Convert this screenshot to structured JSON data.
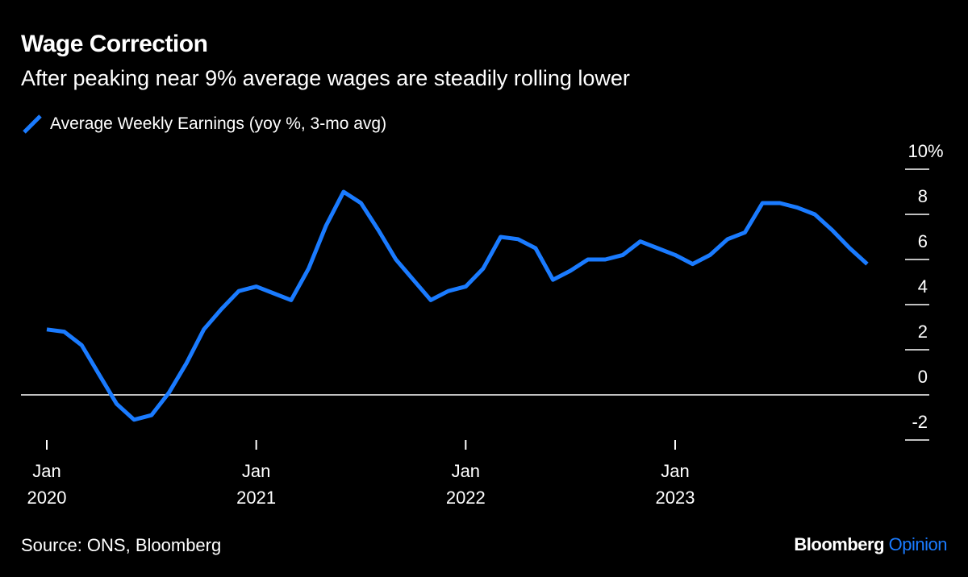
{
  "header": {
    "title": "Wage Correction",
    "subtitle": "After peaking near 9% average wages are steadily rolling lower"
  },
  "footer": {
    "source": "Source: ONS, Bloomberg",
    "logo_brand": "Bloomberg",
    "logo_product": "Opinion"
  },
  "colors": {
    "background": "#000000",
    "series": "#1a7bff",
    "text": "#ffffff"
  },
  "chart_data": {
    "type": "line",
    "title": "Wage Correction",
    "subtitle": "After peaking near 9% average wages are steadily rolling lower",
    "xlabel": "",
    "ylabel": "",
    "ylim": [
      -2,
      10
    ],
    "y_axis_position": "right",
    "y_ticks": [
      10,
      8,
      6,
      4,
      2,
      0,
      -2
    ],
    "y_tick_labels": [
      "10",
      "8",
      "6",
      "4",
      "2",
      "0",
      "-2"
    ],
    "y_unit": "%",
    "x_ticks": [
      {
        "month": "Jan",
        "year": "2020",
        "index": 0
      },
      {
        "month": "Jan",
        "year": "2021",
        "index": 12
      },
      {
        "month": "Jan",
        "year": "2022",
        "index": 24
      },
      {
        "month": "Jan",
        "year": "2023",
        "index": 36
      }
    ],
    "zero_line": true,
    "grid": false,
    "legend_position": "top-left",
    "series": [
      {
        "name": "Average Weekly Earnings (yoy %, 3-mo avg)",
        "color": "#1a7bff",
        "x_start": "2020-01",
        "x_frequency": "monthly",
        "values": [
          2.9,
          2.8,
          2.2,
          0.9,
          -0.4,
          -1.1,
          -0.9,
          0.1,
          1.4,
          2.9,
          3.8,
          4.6,
          4.8,
          4.5,
          4.2,
          5.6,
          7.5,
          9.0,
          8.5,
          7.3,
          6.0,
          5.1,
          4.2,
          4.6,
          4.8,
          5.6,
          7.0,
          6.9,
          6.5,
          5.1,
          5.5,
          6.0,
          6.0,
          6.2,
          6.8,
          6.5,
          6.2,
          5.8,
          6.2,
          6.9,
          7.2,
          8.5,
          8.5,
          8.3,
          8.0,
          7.3,
          6.5,
          5.8
        ]
      }
    ]
  }
}
